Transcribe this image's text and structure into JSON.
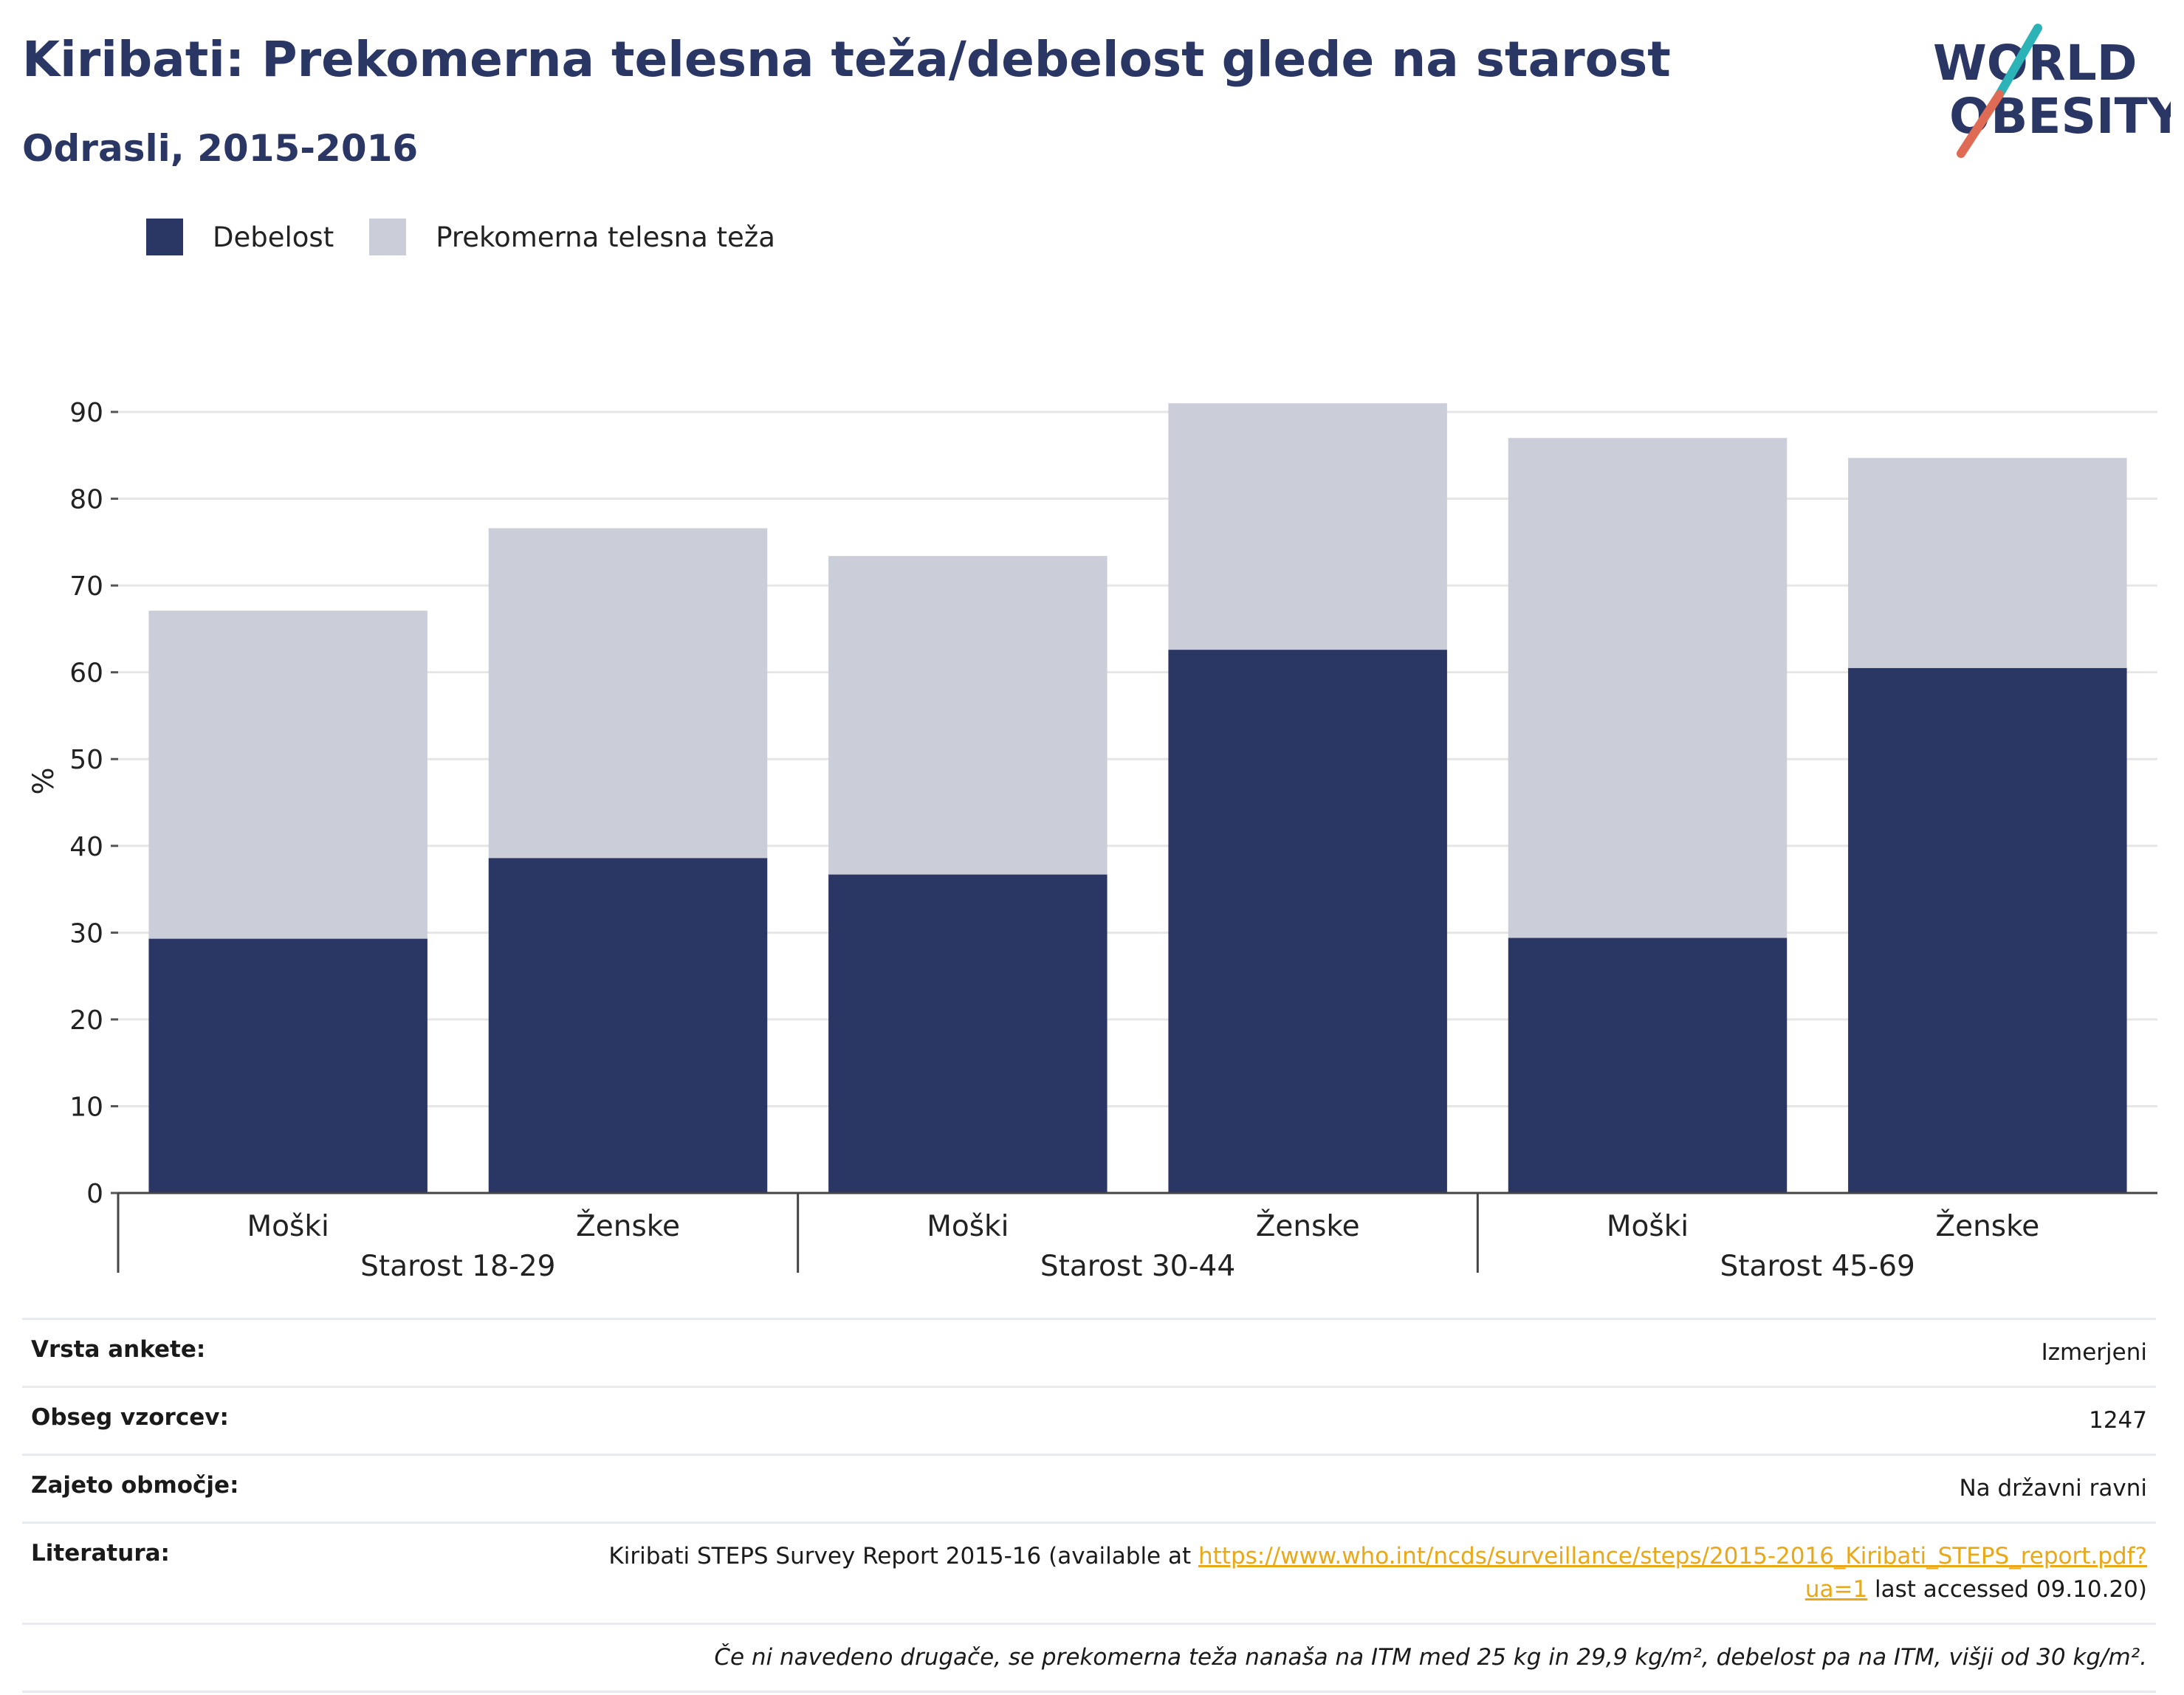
{
  "title": "Kiribati: Prekomerna telesna teža/debelost glede na starost",
  "subtitle": "Odrasli, 2015-2016",
  "logo": {
    "line1": "WORLD",
    "line2": "OBESITY"
  },
  "legend": [
    {
      "label": "Debelost",
      "color": "#2a3663"
    },
    {
      "label": "Prekomerna telesna teža",
      "color": "#cbcdd9"
    }
  ],
  "chart_data": {
    "type": "bar",
    "stacked": true,
    "ylabel": "%",
    "ylim": [
      0,
      90
    ],
    "yticks": [
      0,
      10,
      20,
      30,
      40,
      50,
      60,
      70,
      80,
      90
    ],
    "grid": true,
    "legend_position": "top-left",
    "groups": [
      {
        "label": "Starost 18-29",
        "categories": [
          "Moški",
          "Ženske"
        ]
      },
      {
        "label": "Starost 30-44",
        "categories": [
          "Moški",
          "Ženske"
        ]
      },
      {
        "label": "Starost 45-69",
        "categories": [
          "Moški",
          "Ženske"
        ]
      }
    ],
    "series": [
      {
        "name": "Debelost",
        "color": "#2a3663",
        "values": [
          29.3,
          38.6,
          36.7,
          62.6,
          29.4,
          60.5
        ]
      },
      {
        "name": "Prekomerna telesna teža",
        "color": "#cbcdd9",
        "values": [
          37.8,
          38.0,
          36.7,
          28.4,
          57.6,
          24.2
        ]
      }
    ]
  },
  "info": {
    "survey_type": {
      "label": "Vrsta ankete:",
      "value": "Izmerjeni"
    },
    "sample_size": {
      "label": "Obseg vzorcev:",
      "value": "1247"
    },
    "area": {
      "label": "Zajeto območje:",
      "value": "Na državni ravni"
    },
    "references": {
      "label": "Literatura:",
      "text_before": "Kiribati STEPS Survey Report 2015-16 (available at ",
      "link": "https://www.who.int/ncds/surveillance/steps/2015-2016_Kiribati_STEPS_report.pdf?ua=1",
      "text_after": " last accessed 09.10.20)"
    },
    "note": "Če ni navedeno drugače, se prekomerna teža nanaša na ITM med 25 kg in 29,9 kg/m², debelost pa na ITM, višji od 30 kg/m²."
  }
}
